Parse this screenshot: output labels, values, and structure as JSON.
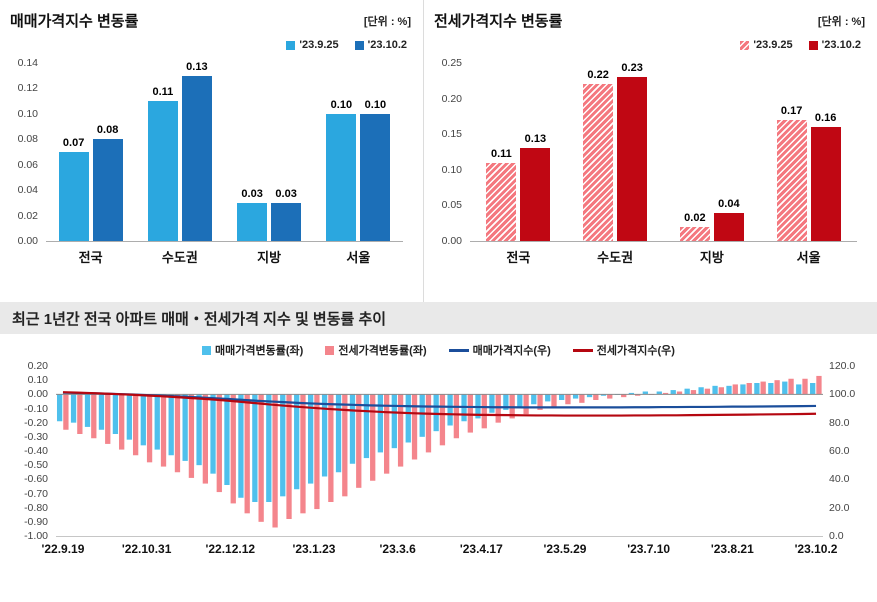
{
  "sales_panel": {
    "title": "매매가격지수 변동률",
    "unit": "[단위 : %]",
    "chart_data": {
      "type": "bar",
      "categories": [
        "전국",
        "수도권",
        "지방",
        "서울"
      ],
      "series": [
        {
          "name": "'23.9.25",
          "color": "#2BA7DF",
          "hatch": false,
          "values": [
            0.07,
            0.11,
            0.03,
            0.1
          ]
        },
        {
          "name": "'23.10.2",
          "color": "#1C6FB8",
          "hatch": false,
          "values": [
            0.08,
            0.13,
            0.03,
            0.1
          ]
        }
      ],
      "ylim": [
        0,
        0.14
      ],
      "ytick": 0.02,
      "grid": false,
      "legend_position": "top-right"
    }
  },
  "jeonse_panel": {
    "title": "전세가격지수 변동률",
    "unit": "[단위 : %]",
    "chart_data": {
      "type": "bar",
      "categories": [
        "전국",
        "수도권",
        "지방",
        "서울"
      ],
      "series": [
        {
          "name": "'23.9.25",
          "color": "#F4787F",
          "hatch": true,
          "values": [
            0.11,
            0.22,
            0.02,
            0.17
          ]
        },
        {
          "name": "'23.10.2",
          "color": "#C00713",
          "hatch": false,
          "values": [
            0.13,
            0.23,
            0.04,
            0.16
          ]
        }
      ],
      "ylim": [
        0,
        0.25
      ],
      "ytick": 0.05,
      "grid": false,
      "legend_position": "top-right"
    }
  },
  "section": {
    "title": "최근 1년간 전국 아파트 매매・전세가격 지수 및 변동률 추이"
  },
  "trend_panel": {
    "chart_data": {
      "type": "combo",
      "x_tick_labels": [
        "'22.9.19",
        "'22.10.31",
        "'22.12.12",
        "'23.1.23",
        "'23.3.6",
        "'23.4.17",
        "'23.5.29",
        "'23.7.10",
        "'23.8.21",
        "'23.10.2"
      ],
      "points_per_label": 6,
      "left_ylim": [
        -1.0,
        0.2
      ],
      "left_ytick": 0.1,
      "right_ylim": [
        0,
        120
      ],
      "right_ytick": 20,
      "legend_position": "top-center",
      "bar_series": [
        {
          "name": "매매가격변동률(좌)",
          "color": "#4FC0EC",
          "axis": "left",
          "values": [
            -0.19,
            -0.2,
            -0.23,
            -0.25,
            -0.28,
            -0.32,
            -0.36,
            -0.39,
            -0.43,
            -0.47,
            -0.5,
            -0.56,
            -0.64,
            -0.73,
            -0.76,
            -0.76,
            -0.72,
            -0.67,
            -0.63,
            -0.58,
            -0.55,
            -0.49,
            -0.45,
            -0.41,
            -0.38,
            -0.34,
            -0.3,
            -0.26,
            -0.22,
            -0.19,
            -0.17,
            -0.13,
            -0.11,
            -0.09,
            -0.07,
            -0.05,
            -0.04,
            -0.03,
            -0.02,
            -0.01,
            0.0,
            0.01,
            0.02,
            0.02,
            0.03,
            0.04,
            0.05,
            0.06,
            0.06,
            0.07,
            0.08,
            0.08,
            0.09,
            0.07,
            0.08
          ]
        },
        {
          "name": "전세가격변동률(좌)",
          "color": "#F4858C",
          "axis": "left",
          "values": [
            -0.25,
            -0.28,
            -0.31,
            -0.35,
            -0.39,
            -0.43,
            -0.48,
            -0.51,
            -0.55,
            -0.59,
            -0.63,
            -0.69,
            -0.77,
            -0.84,
            -0.9,
            -0.94,
            -0.88,
            -0.84,
            -0.81,
            -0.76,
            -0.72,
            -0.66,
            -0.61,
            -0.56,
            -0.51,
            -0.46,
            -0.41,
            -0.36,
            -0.31,
            -0.27,
            -0.24,
            -0.2,
            -0.17,
            -0.14,
            -0.11,
            -0.09,
            -0.07,
            -0.06,
            -0.04,
            -0.03,
            -0.02,
            -0.01,
            0.0,
            0.01,
            0.02,
            0.03,
            0.04,
            0.05,
            0.07,
            0.08,
            0.09,
            0.1,
            0.11,
            0.11,
            0.13
          ]
        }
      ],
      "line_series": [
        {
          "name": "매매가격지수(우)",
          "color": "#1B4E9B",
          "axis": "right",
          "values": [
            101.2,
            101.0,
            100.8,
            100.5,
            100.2,
            99.9,
            99.5,
            99.1,
            98.7,
            98.2,
            97.7,
            97.2,
            96.6,
            96.0,
            95.4,
            94.9,
            94.4,
            93.9,
            93.5,
            93.1,
            92.8,
            92.5,
            92.2,
            92.0,
            91.8,
            91.6,
            91.4,
            91.3,
            91.2,
            91.1,
            91.0,
            90.9,
            90.9,
            90.8,
            90.8,
            90.8,
            90.8,
            90.8,
            90.8,
            90.8,
            90.8,
            90.9,
            90.9,
            91.0,
            91.0,
            91.1,
            91.1,
            91.2,
            91.3,
            91.3,
            91.4,
            91.5,
            91.6,
            91.7,
            91.8
          ]
        },
        {
          "name": "전세가격지수(우)",
          "color": "#B50710",
          "axis": "right",
          "values": [
            101.5,
            101.2,
            100.9,
            100.5,
            100.1,
            99.7,
            99.2,
            98.7,
            98.1,
            97.5,
            96.9,
            96.2,
            95.4,
            94.5,
            93.6,
            92.7,
            91.9,
            91.1,
            90.4,
            89.7,
            89.1,
            88.5,
            88.0,
            87.5,
            87.1,
            86.7,
            86.4,
            86.1,
            85.9,
            85.7,
            85.5,
            85.4,
            85.3,
            85.2,
            85.1,
            85.1,
            85.0,
            85.0,
            85.0,
            85.0,
            85.0,
            85.1,
            85.1,
            85.2,
            85.2,
            85.3,
            85.4,
            85.5,
            85.6,
            85.7,
            85.8,
            85.9,
            86.0,
            86.1,
            86.3
          ]
        }
      ]
    }
  }
}
